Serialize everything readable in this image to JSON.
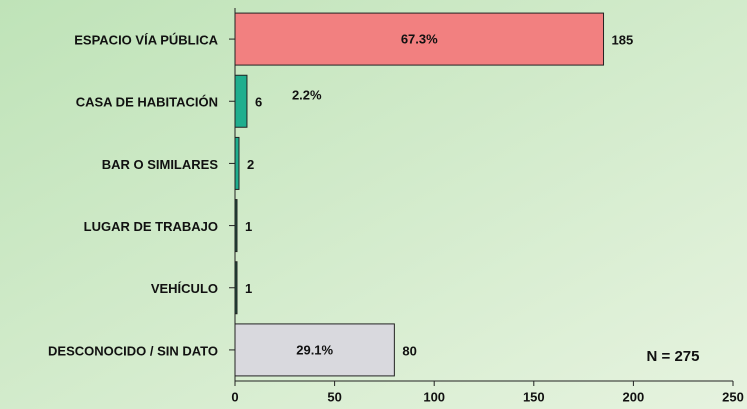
{
  "chart_data": {
    "type": "hbar",
    "categories": [
      "ESPACIO VÍA PÚBLICA",
      "CASA DE HABITACIÓN",
      "BAR O SIMILARES",
      "LUGAR DE TRABAJO",
      "VEHÍCULO",
      "DESCONOCIDO / SIN DATO"
    ],
    "values": [
      185,
      6,
      2,
      1,
      1,
      80
    ],
    "colors": [
      "#f28080",
      "#1fae8e",
      "#1fae8e",
      "#1d4e3e",
      "#1d4e3e",
      "#d9d9de"
    ],
    "percent_labels": [
      "67.3%",
      "2.2%",
      null,
      null,
      null,
      "29.1%"
    ],
    "xlim": [
      0,
      250
    ],
    "xticks": [
      0,
      50,
      100,
      150,
      200,
      250
    ],
    "annotation": "N = 275"
  }
}
